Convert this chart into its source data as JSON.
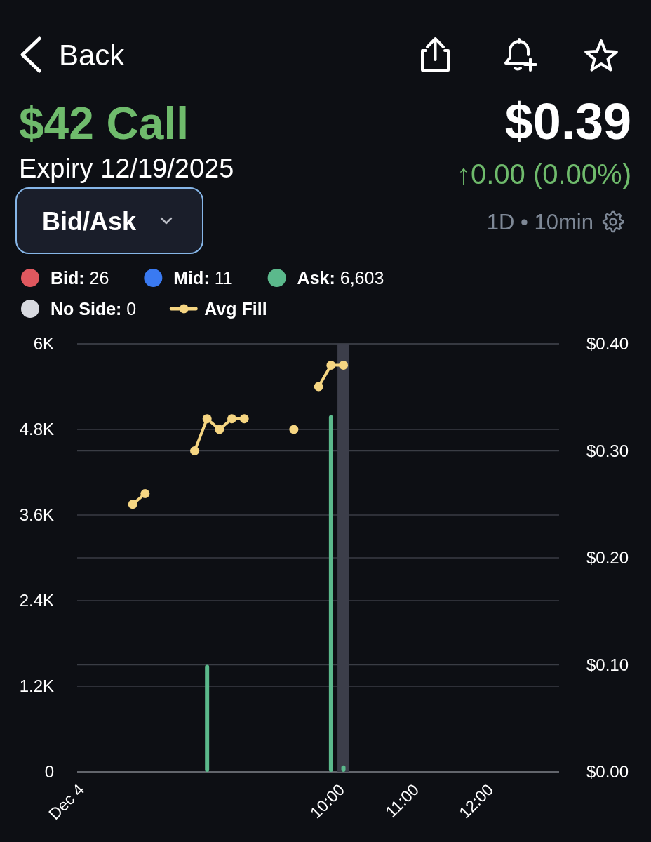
{
  "chart_data": {
    "type": "bar",
    "title": "$42 Call",
    "subtitle": "Expiry 12/19/2025",
    "annotations": [
      "Back",
      "$0.39",
      "↑0.00 (0.00%)",
      "Bid/Ask",
      "1D • 10min"
    ],
    "x": [
      7.1667,
      7.3333,
      7.5,
      7.6667,
      7.8333,
      8,
      8.1667,
      8.3333,
      8.5,
      8.6667,
      8.8333,
      9,
      9.1667,
      9.3333,
      9.5,
      9.6667,
      9.8333,
      10
    ],
    "xlim": [
      6.42,
      12.9
    ],
    "xticks": [
      {
        "value": 6.5,
        "label": "Dec 4"
      },
      {
        "value": 10,
        "label": "10:00"
      },
      {
        "value": 11,
        "label": "11:00"
      },
      {
        "value": 12,
        "label": "12:00"
      }
    ],
    "ylim": [
      0,
      6000
    ],
    "yticks": [
      0,
      {
        "value": 1200,
        "label": "1.2K"
      },
      {
        "value": 2400,
        "label": "2.4K"
      },
      {
        "value": 3600,
        "label": "3.6K"
      },
      {
        "value": 4800,
        "label": "4.8K"
      },
      {
        "value": 6000,
        "label": "6K"
      }
    ],
    "y2lim": [
      0,
      0.4
    ],
    "y2ticks": [
      {
        "value": 0,
        "label": "$0.00"
      },
      {
        "value": 0.1,
        "label": "$0.10"
      },
      {
        "value": 0.2,
        "label": "$0.20"
      },
      {
        "value": 0.3,
        "label": "$0.30"
      },
      {
        "value": 0.4,
        "label": "$0.40"
      }
    ],
    "grid": "y",
    "legend": "top left",
    "marker": "circle",
    "line_style": "solid",
    "bands": [
      {
        "axis": "x",
        "from": 9.92,
        "to": 10.08,
        "color": "#3c3e4a"
      }
    ],
    "series": [
      {
        "name": "Bid: 26",
        "color": "#e0585f",
        "values": [
          null,
          null,
          null,
          null,
          null,
          null,
          null,
          null,
          null,
          null,
          null,
          null,
          null,
          null,
          null,
          null,
          null,
          null
        ]
      },
      {
        "name": "Mid: 11",
        "color": "#3a7af2",
        "values": [
          null,
          null,
          null,
          null,
          null,
          null,
          null,
          null,
          null,
          null,
          null,
          null,
          null,
          null,
          null,
          null,
          null,
          null
        ]
      },
      {
        "name": "Ask: 6,603",
        "color": "#5bb98c",
        "values": [
          null,
          null,
          null,
          null,
          null,
          null,
          1500,
          null,
          null,
          null,
          null,
          null,
          null,
          null,
          null,
          null,
          5000,
          90
        ]
      },
      {
        "name": "No Side: 0",
        "color": "#d8dae0",
        "values": [
          null,
          null,
          null,
          null,
          null,
          null,
          null,
          null,
          null,
          null,
          null,
          null,
          null,
          null,
          null,
          null,
          null,
          null
        ]
      },
      {
        "name": "Avg Fill",
        "color": "#f5d582",
        "type": "line",
        "axis": "y2",
        "values": [
          0.25,
          0.26,
          null,
          null,
          null,
          0.3,
          0.33,
          0.32,
          0.33,
          0.33,
          null,
          null,
          null,
          0.32,
          null,
          0.36,
          0.38,
          0.38
        ]
      }
    ]
  }
}
